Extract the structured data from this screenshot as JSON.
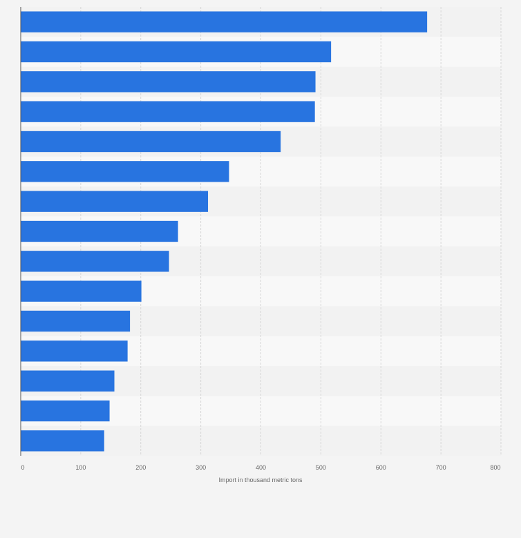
{
  "chart_data": {
    "type": "bar",
    "orientation": "horizontal",
    "title": "",
    "xlabel": "Import in thousand metric tons",
    "ylabel": "",
    "xlim": [
      0,
      800
    ],
    "x_ticks": [
      0,
      100,
      200,
      300,
      400,
      500,
      600,
      700,
      800
    ],
    "grid": true,
    "bar_color": "#2874e0",
    "values": [
      677,
      517,
      491,
      490,
      433,
      347,
      312,
      262,
      247,
      201,
      182,
      178,
      156,
      148,
      139
    ]
  }
}
